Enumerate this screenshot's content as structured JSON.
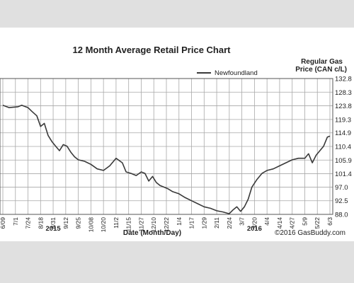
{
  "chart_data": {
    "type": "line",
    "title": "12 Month Average Retail Price Chart",
    "ylabel": "Regular Gas Price (CAN c/L)",
    "ylabel_lines": [
      "Regular Gas",
      "Price (CAN c/L)"
    ],
    "xlabel": "Date (Month/Day)",
    "watermark": "©2016 GasBuddy.com",
    "legend": "Newfoundland",
    "legend_position": "top-right",
    "grid": true,
    "ylim": [
      88.0,
      132.8
    ],
    "yticks": [
      "88.0",
      "92.5",
      "97.0",
      "101.4",
      "105.9",
      "110.4",
      "114.9",
      "119.3",
      "123.8",
      "128.3",
      "132.8"
    ],
    "xticks": [
      "6/09",
      "7/1",
      "7/24",
      "8/18",
      "8/31",
      "9/12",
      "9/25",
      "10/08",
      "10/20",
      "11/2",
      "11/15",
      "11/27",
      "12/10",
      "12/22",
      "1/4",
      "1/17",
      "1/29",
      "2/11",
      "2/24",
      "3/7",
      "3/20",
      "4/4",
      "4/14",
      "4/27",
      "5/9",
      "5/22",
      "6/3"
    ],
    "year_labels": [
      {
        "label": "2015",
        "tick": "8/31"
      },
      {
        "label": "2016",
        "tick": "3/20"
      }
    ],
    "series": [
      {
        "name": "Newfoundland",
        "color": "#3a3a3a",
        "x": [
          0,
          0.5,
          1.2,
          1.5,
          2.0,
          2.3,
          2.7,
          3.0,
          3.3,
          3.6,
          3.9,
          4.2,
          4.5,
          4.8,
          5.1,
          5.4,
          5.7,
          6.0,
          6.5,
          7.0,
          7.5,
          8.0,
          8.5,
          9.0,
          9.5,
          9.8,
          10.2,
          10.6,
          11.0,
          11.3,
          11.6,
          11.9,
          12.2,
          12.5,
          12.8,
          13.1,
          13.5,
          14.0,
          14.5,
          15.0,
          15.5,
          16.0,
          16.5,
          17.0,
          17.5,
          18.0,
          18.3,
          18.6,
          18.9,
          19.2,
          19.5,
          19.8,
          20.2,
          20.6,
          21.0,
          21.5,
          22.0,
          22.5,
          23.0,
          23.5,
          24.0,
          24.3,
          24.6,
          24.9,
          25.2,
          25.5,
          25.8,
          26.0
        ],
        "values": [
          124.0,
          123.2,
          123.5,
          124.0,
          123.2,
          122.0,
          120.5,
          117.0,
          118.0,
          114.0,
          112.0,
          110.5,
          109.0,
          111.0,
          110.5,
          108.5,
          107.0,
          106.0,
          105.5,
          104.5,
          103.0,
          102.5,
          104.0,
          106.5,
          105.0,
          102.0,
          101.5,
          100.8,
          102.0,
          101.5,
          99.0,
          100.5,
          98.5,
          97.5,
          97.0,
          96.5,
          95.5,
          94.8,
          93.5,
          92.5,
          91.5,
          90.5,
          90.0,
          89.2,
          88.8,
          88.2,
          89.5,
          90.5,
          89.0,
          90.5,
          93.0,
          97.0,
          99.5,
          101.5,
          102.5,
          103.0,
          104.0,
          105.0,
          106.0,
          106.5,
          106.5,
          108.0,
          105.0,
          107.5,
          109.0,
          110.5,
          113.5,
          113.8
        ]
      }
    ]
  }
}
